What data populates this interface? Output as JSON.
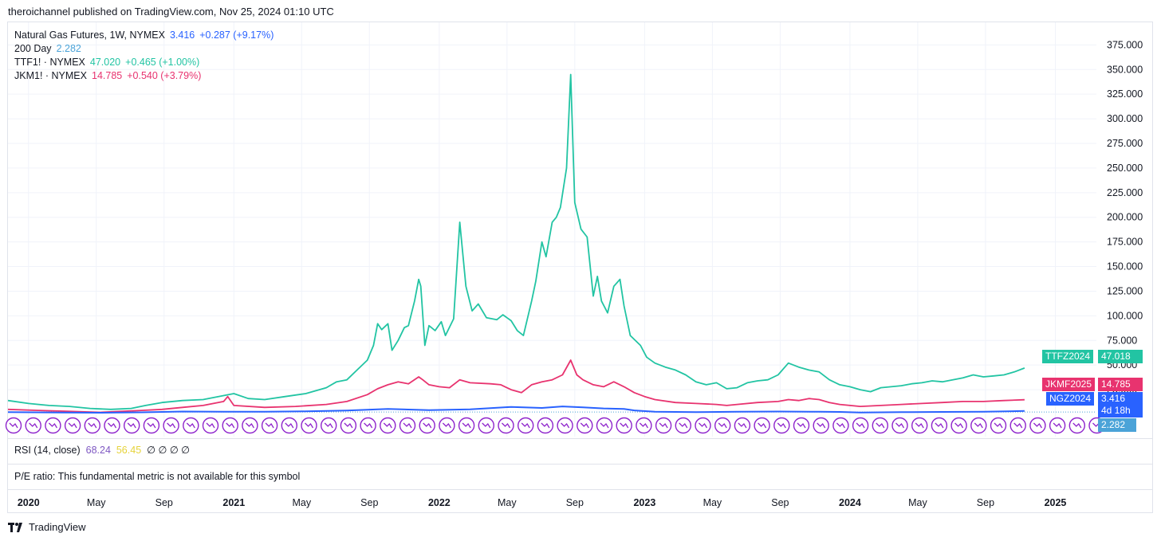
{
  "header": {
    "publish_text": "theroichannel published on TradingView.com, Nov 25, 2024 01:10 UTC"
  },
  "legend": {
    "ng": {
      "title": "Natural Gas Futures, 1W, NYMEX",
      "value": "3.416",
      "change": "+0.287 (+9.17%)"
    },
    "ma": {
      "title": "200 Day",
      "value": "2.282"
    },
    "ttf": {
      "title": "TTF1! · NYMEX",
      "value": "47.020",
      "change": "+0.465 (+1.00%)"
    },
    "jkm": {
      "title": "JKM1! · NYMEX",
      "value": "14.785",
      "change": "+0.540 (+3.79%)"
    }
  },
  "colors": {
    "ttf": "#22c4a3",
    "jkm": "#e8336f",
    "ng": "#2962ff",
    "ma": "#4ba3d8",
    "markers": "#8e24cc",
    "rsi_value": "#7e57c2",
    "rsi_ma": "#e6d33a"
  },
  "price_labels": {
    "ttf": {
      "name": "TTFZ2024",
      "value": "47.018"
    },
    "jkm": {
      "name": "JKMF2025",
      "value": "14.785"
    },
    "ng": {
      "name": "NGZ2024",
      "value": "3.416",
      "countdown": "4d 18h"
    },
    "ma": {
      "value": "2.282"
    }
  },
  "rsi": {
    "label": "RSI (14, close)",
    "value": "68.24",
    "ma": "56.45",
    "extra": "∅ ∅ ∅ ∅"
  },
  "pe": {
    "label": "P/E ratio: This fundamental metric is not available for this symbol"
  },
  "brand": {
    "name": "TradingView"
  },
  "chart_data": {
    "type": "line",
    "y_axis": {
      "ticks": [
        25,
        50,
        75,
        100,
        125,
        150,
        175,
        200,
        225,
        250,
        275,
        300,
        325,
        350,
        375
      ],
      "tick_labels": [
        "25.000",
        "50.000",
        "75.000",
        "100.000",
        "125.000",
        "150.000",
        "175.000",
        "200.000",
        "225.000",
        "250.000",
        "275.000",
        "300.000",
        "325.000",
        "350.000",
        "375.000"
      ],
      "ylim": [
        0,
        385
      ]
    },
    "x_axis": {
      "labels": [
        "2020",
        "May",
        "Sep",
        "2021",
        "May",
        "Sep",
        "2022",
        "May",
        "Sep",
        "2023",
        "May",
        "Sep",
        "2024",
        "May",
        "Sep",
        "2025"
      ],
      "years": [
        true,
        false,
        false,
        true,
        false,
        false,
        true,
        false,
        false,
        true,
        false,
        false,
        true,
        false,
        false,
        true
      ],
      "xlim": [
        2019.95,
        2025.25
      ]
    },
    "series": [
      {
        "name": "TTF1!",
        "points": [
          [
            2019.95,
            14
          ],
          [
            2020.05,
            11
          ],
          [
            2020.15,
            9
          ],
          [
            2020.25,
            8
          ],
          [
            2020.35,
            6
          ],
          [
            2020.45,
            5
          ],
          [
            2020.55,
            6
          ],
          [
            2020.62,
            9
          ],
          [
            2020.7,
            12
          ],
          [
            2020.8,
            14
          ],
          [
            2020.9,
            15
          ],
          [
            2021.0,
            19
          ],
          [
            2021.05,
            21
          ],
          [
            2021.12,
            16
          ],
          [
            2021.2,
            15
          ],
          [
            2021.3,
            18
          ],
          [
            2021.4,
            21
          ],
          [
            2021.5,
            27
          ],
          [
            2021.55,
            33
          ],
          [
            2021.6,
            35
          ],
          [
            2021.65,
            45
          ],
          [
            2021.7,
            55
          ],
          [
            2021.73,
            70
          ],
          [
            2021.75,
            92
          ],
          [
            2021.77,
            86
          ],
          [
            2021.8,
            92
          ],
          [
            2021.82,
            65
          ],
          [
            2021.85,
            75
          ],
          [
            2021.88,
            88
          ],
          [
            2021.9,
            90
          ],
          [
            2021.93,
            115
          ],
          [
            2021.95,
            137
          ],
          [
            2021.96,
            130
          ],
          [
            2021.98,
            70
          ],
          [
            2022.0,
            90
          ],
          [
            2022.03,
            85
          ],
          [
            2022.06,
            94
          ],
          [
            2022.08,
            80
          ],
          [
            2022.12,
            97
          ],
          [
            2022.15,
            195
          ],
          [
            2022.18,
            130
          ],
          [
            2022.21,
            105
          ],
          [
            2022.24,
            112
          ],
          [
            2022.28,
            98
          ],
          [
            2022.33,
            96
          ],
          [
            2022.36,
            101
          ],
          [
            2022.4,
            95
          ],
          [
            2022.43,
            85
          ],
          [
            2022.46,
            80
          ],
          [
            2022.5,
            115
          ],
          [
            2022.52,
            135
          ],
          [
            2022.55,
            175
          ],
          [
            2022.57,
            160
          ],
          [
            2022.6,
            195
          ],
          [
            2022.62,
            200
          ],
          [
            2022.64,
            210
          ],
          [
            2022.67,
            250
          ],
          [
            2022.69,
            345
          ],
          [
            2022.71,
            215
          ],
          [
            2022.74,
            188
          ],
          [
            2022.77,
            180
          ],
          [
            2022.8,
            120
          ],
          [
            2022.82,
            140
          ],
          [
            2022.84,
            115
          ],
          [
            2022.87,
            103
          ],
          [
            2022.9,
            130
          ],
          [
            2022.93,
            137
          ],
          [
            2022.95,
            110
          ],
          [
            2022.98,
            80
          ],
          [
            2023.03,
            70
          ],
          [
            2023.06,
            58
          ],
          [
            2023.1,
            52
          ],
          [
            2023.15,
            48
          ],
          [
            2023.2,
            45
          ],
          [
            2023.25,
            40
          ],
          [
            2023.3,
            33
          ],
          [
            2023.35,
            30
          ],
          [
            2023.4,
            32
          ],
          [
            2023.45,
            26
          ],
          [
            2023.5,
            27
          ],
          [
            2023.55,
            32
          ],
          [
            2023.6,
            34
          ],
          [
            2023.65,
            35
          ],
          [
            2023.7,
            40
          ],
          [
            2023.75,
            52
          ],
          [
            2023.8,
            48
          ],
          [
            2023.85,
            45
          ],
          [
            2023.9,
            43
          ],
          [
            2023.95,
            35
          ],
          [
            2024.0,
            30
          ],
          [
            2024.05,
            28
          ],
          [
            2024.1,
            25
          ],
          [
            2024.15,
            23
          ],
          [
            2024.2,
            27
          ],
          [
            2024.25,
            28
          ],
          [
            2024.3,
            29
          ],
          [
            2024.35,
            31
          ],
          [
            2024.4,
            32
          ],
          [
            2024.45,
            34
          ],
          [
            2024.5,
            33
          ],
          [
            2024.55,
            35
          ],
          [
            2024.6,
            37
          ],
          [
            2024.65,
            40
          ],
          [
            2024.7,
            38
          ],
          [
            2024.75,
            39
          ],
          [
            2024.8,
            40
          ],
          [
            2024.85,
            43
          ],
          [
            2024.9,
            47
          ]
        ]
      },
      {
        "name": "JKM1!",
        "points": [
          [
            2019.95,
            5
          ],
          [
            2020.1,
            4
          ],
          [
            2020.25,
            3
          ],
          [
            2020.4,
            2
          ],
          [
            2020.5,
            3
          ],
          [
            2020.6,
            4
          ],
          [
            2020.7,
            5
          ],
          [
            2020.8,
            7
          ],
          [
            2020.9,
            9
          ],
          [
            2021.0,
            13
          ],
          [
            2021.02,
            18
          ],
          [
            2021.05,
            9
          ],
          [
            2021.2,
            7
          ],
          [
            2021.35,
            8
          ],
          [
            2021.5,
            10
          ],
          [
            2021.6,
            13
          ],
          [
            2021.7,
            20
          ],
          [
            2021.75,
            26
          ],
          [
            2021.8,
            30
          ],
          [
            2021.85,
            33
          ],
          [
            2021.9,
            31
          ],
          [
            2021.95,
            38
          ],
          [
            2021.97,
            35
          ],
          [
            2022.0,
            30
          ],
          [
            2022.05,
            28
          ],
          [
            2022.1,
            27
          ],
          [
            2022.15,
            35
          ],
          [
            2022.2,
            32
          ],
          [
            2022.3,
            31
          ],
          [
            2022.35,
            30
          ],
          [
            2022.4,
            25
          ],
          [
            2022.45,
            22
          ],
          [
            2022.5,
            30
          ],
          [
            2022.55,
            33
          ],
          [
            2022.6,
            35
          ],
          [
            2022.65,
            40
          ],
          [
            2022.69,
            55
          ],
          [
            2022.72,
            40
          ],
          [
            2022.75,
            35
          ],
          [
            2022.8,
            30
          ],
          [
            2022.85,
            28
          ],
          [
            2022.9,
            33
          ],
          [
            2022.95,
            28
          ],
          [
            2023.0,
            22
          ],
          [
            2023.05,
            18
          ],
          [
            2023.1,
            15
          ],
          [
            2023.2,
            12
          ],
          [
            2023.3,
            11
          ],
          [
            2023.4,
            10
          ],
          [
            2023.45,
            9
          ],
          [
            2023.5,
            10
          ],
          [
            2023.6,
            12
          ],
          [
            2023.7,
            13
          ],
          [
            2023.75,
            15
          ],
          [
            2023.8,
            14
          ],
          [
            2023.85,
            16
          ],
          [
            2023.9,
            15
          ],
          [
            2023.95,
            12
          ],
          [
            2024.0,
            10
          ],
          [
            2024.1,
            8
          ],
          [
            2024.2,
            9
          ],
          [
            2024.3,
            10
          ],
          [
            2024.4,
            11
          ],
          [
            2024.5,
            12
          ],
          [
            2024.6,
            13
          ],
          [
            2024.7,
            13
          ],
          [
            2024.8,
            14
          ],
          [
            2024.9,
            14.8
          ]
        ]
      },
      {
        "name": "Natural Gas Futures",
        "points": [
          [
            2019.95,
            2.2
          ],
          [
            2020.2,
            1.8
          ],
          [
            2020.4,
            1.6
          ],
          [
            2020.6,
            2.0
          ],
          [
            2020.8,
            2.8
          ],
          [
            2021.0,
            2.6
          ],
          [
            2021.2,
            2.7
          ],
          [
            2021.4,
            3.0
          ],
          [
            2021.6,
            3.8
          ],
          [
            2021.8,
            5.5
          ],
          [
            2022.0,
            4.2
          ],
          [
            2022.2,
            5.0
          ],
          [
            2022.4,
            7.5
          ],
          [
            2022.55,
            6.5
          ],
          [
            2022.65,
            8.0
          ],
          [
            2022.75,
            7.0
          ],
          [
            2022.85,
            6.0
          ],
          [
            2022.95,
            5.5
          ],
          [
            2023.0,
            4.0
          ],
          [
            2023.1,
            2.6
          ],
          [
            2023.3,
            2.3
          ],
          [
            2023.5,
            2.6
          ],
          [
            2023.7,
            2.8
          ],
          [
            2023.9,
            2.6
          ],
          [
            2024.0,
            2.4
          ],
          [
            2024.1,
            1.8
          ],
          [
            2024.3,
            2.2
          ],
          [
            2024.5,
            2.4
          ],
          [
            2024.7,
            2.6
          ],
          [
            2024.9,
            3.4
          ]
        ]
      }
    ]
  }
}
